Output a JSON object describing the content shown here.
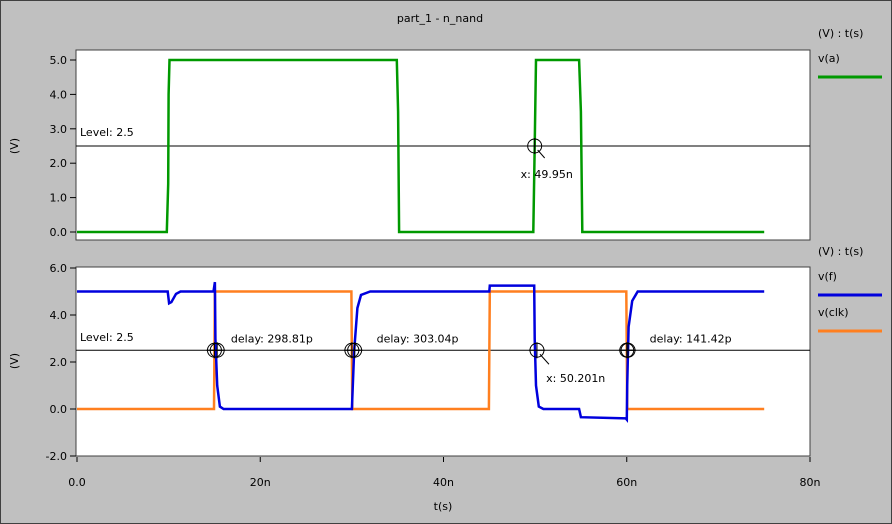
{
  "window": {
    "title": "part_1 - n_nand"
  },
  "chart_data": [
    {
      "type": "line",
      "ylabel": "(V)",
      "ylim": [
        0,
        5
      ],
      "xlim": [
        0,
        80
      ],
      "yticks": [
        "0.0",
        "1.0",
        "2.0",
        "3.0",
        "4.0",
        "5.0"
      ],
      "unit_header": "(V) : t(s)",
      "level_label": "Level: 2.5",
      "level": 2.5,
      "grid": false,
      "legend_position": "right",
      "series": [
        {
          "name": "v(a)",
          "color": "#009900",
          "x": [
            0,
            9.8,
            9.95,
            10.0,
            10.1,
            34.9,
            35.05,
            35.15,
            49.8,
            49.95,
            50.1,
            54.8,
            55.0,
            55.15,
            75
          ],
          "y": [
            0,
            0,
            1.4,
            4.0,
            5.0,
            5.0,
            3.5,
            0,
            0,
            2.5,
            5.0,
            5.0,
            3.5,
            0,
            0
          ]
        }
      ],
      "cursors": [
        {
          "x": 49.95,
          "y": 2.5,
          "label": "x: 49.95n"
        }
      ]
    },
    {
      "type": "line",
      "ylabel": "(V)",
      "ylim": [
        -2,
        6
      ],
      "xlim": [
        0,
        80
      ],
      "yticks": [
        "-2.0",
        "0.0",
        "2.0",
        "4.0",
        "6.0"
      ],
      "xticks": [
        "0.0",
        "20n",
        "40n",
        "60n",
        "80n"
      ],
      "xlabel": "t(s)",
      "unit_header": "(V) : t(s)",
      "level_label": "Level: 2.5",
      "level": 2.5,
      "grid": false,
      "legend_position": "right",
      "series": [
        {
          "name": "v(f)",
          "color": "#0000dd",
          "x": [
            0,
            9.9,
            10.05,
            10.3,
            10.8,
            11.3,
            14.9,
            15.05,
            15.1,
            15.3,
            15.6,
            16,
            30,
            30.1,
            30.25,
            30.6,
            31,
            32,
            45,
            45.05,
            49.9,
            49.95,
            50.1,
            50.4,
            50.9,
            54.8,
            55.0,
            59.9,
            60.0,
            60.05,
            60.2,
            60.6,
            61.2,
            75
          ],
          "y": [
            5.0,
            5.0,
            4.5,
            4.55,
            4.9,
            5.0,
            5.0,
            5.4,
            3.0,
            1.0,
            0.1,
            0.0,
            0.0,
            1.0,
            2.5,
            4.3,
            4.85,
            5.0,
            5.0,
            5.25,
            5.25,
            3.0,
            1.0,
            0.1,
            0.0,
            0.0,
            -0.35,
            -0.4,
            -0.45,
            1.0,
            3.5,
            4.6,
            5.0,
            5.0
          ]
        },
        {
          "name": "v(clk)",
          "color": "#ff7f1f",
          "x": [
            0,
            14.95,
            15.05,
            29.95,
            30.05,
            44.95,
            45.05,
            59.95,
            60.05,
            75
          ],
          "y": [
            0,
            0,
            5,
            5,
            0,
            0,
            5,
            5,
            0,
            0
          ]
        }
      ],
      "cursors": [
        {
          "x": 15.0,
          "y": 2.5
        },
        {
          "x": 15.3,
          "y": 2.5
        },
        {
          "x": 30.0,
          "y": 2.5
        },
        {
          "x": 30.3,
          "y": 2.5
        },
        {
          "x": 50.2,
          "y": 2.5
        },
        {
          "x": 60.0,
          "y": 2.5
        },
        {
          "x": 60.14,
          "y": 2.5
        }
      ],
      "annotations": [
        {
          "text": "delay: 298.81p",
          "x": 16.8,
          "y": 2.5
        },
        {
          "text": "delay: 303.04p",
          "x": 32.7,
          "y": 2.5
        },
        {
          "text": "x: 50.201n",
          "x": 51.2,
          "y": 0.8
        },
        {
          "text": "delay: 141.42p",
          "x": 62.5,
          "y": 2.5
        }
      ]
    }
  ]
}
